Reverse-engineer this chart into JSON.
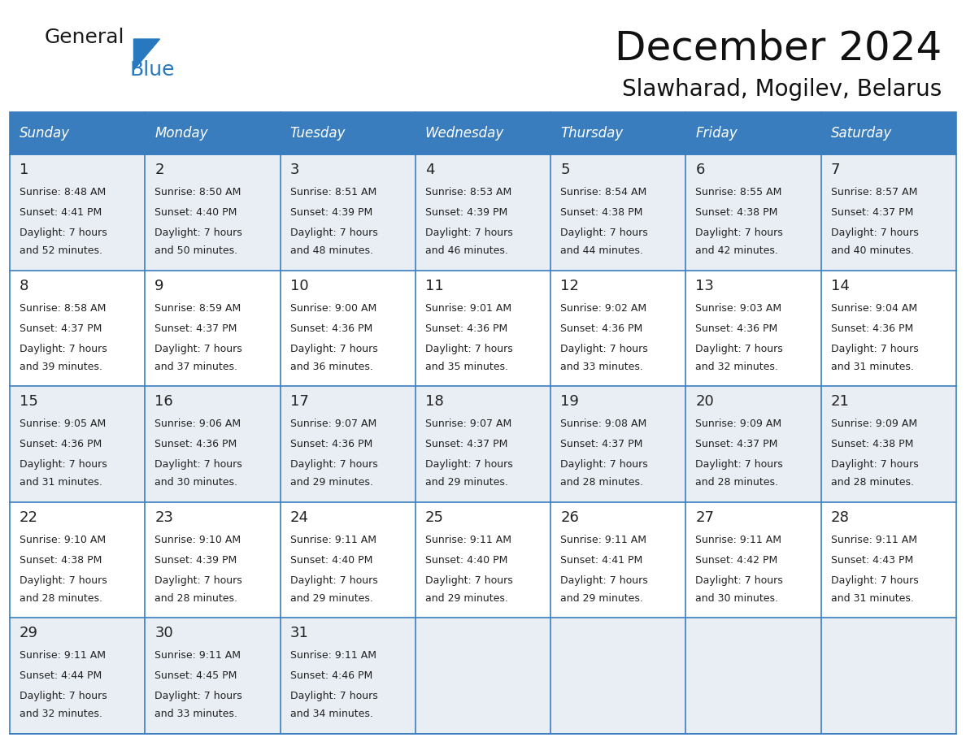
{
  "title": "December 2024",
  "subtitle": "Slawharad, Mogilev, Belarus",
  "header_bg_color": "#3a7dbf",
  "header_text_color": "#ffffff",
  "row_bg_colors": [
    "#e8eef4",
    "#ffffff"
  ],
  "grid_line_color": "#3a7dbf",
  "text_color": "#222222",
  "day_headers": [
    "Sunday",
    "Monday",
    "Tuesday",
    "Wednesday",
    "Thursday",
    "Friday",
    "Saturday"
  ],
  "weeks": [
    [
      {
        "day": "1",
        "sunrise": "8:48 AM",
        "sunset": "4:41 PM",
        "daylight_l1": "Daylight: 7 hours",
        "daylight_l2": "and 52 minutes."
      },
      {
        "day": "2",
        "sunrise": "8:50 AM",
        "sunset": "4:40 PM",
        "daylight_l1": "Daylight: 7 hours",
        "daylight_l2": "and 50 minutes."
      },
      {
        "day": "3",
        "sunrise": "8:51 AM",
        "sunset": "4:39 PM",
        "daylight_l1": "Daylight: 7 hours",
        "daylight_l2": "and 48 minutes."
      },
      {
        "day": "4",
        "sunrise": "8:53 AM",
        "sunset": "4:39 PM",
        "daylight_l1": "Daylight: 7 hours",
        "daylight_l2": "and 46 minutes."
      },
      {
        "day": "5",
        "sunrise": "8:54 AM",
        "sunset": "4:38 PM",
        "daylight_l1": "Daylight: 7 hours",
        "daylight_l2": "and 44 minutes."
      },
      {
        "day": "6",
        "sunrise": "8:55 AM",
        "sunset": "4:38 PM",
        "daylight_l1": "Daylight: 7 hours",
        "daylight_l2": "and 42 minutes."
      },
      {
        "day": "7",
        "sunrise": "8:57 AM",
        "sunset": "4:37 PM",
        "daylight_l1": "Daylight: 7 hours",
        "daylight_l2": "and 40 minutes."
      }
    ],
    [
      {
        "day": "8",
        "sunrise": "8:58 AM",
        "sunset": "4:37 PM",
        "daylight_l1": "Daylight: 7 hours",
        "daylight_l2": "and 39 minutes."
      },
      {
        "day": "9",
        "sunrise": "8:59 AM",
        "sunset": "4:37 PM",
        "daylight_l1": "Daylight: 7 hours",
        "daylight_l2": "and 37 minutes."
      },
      {
        "day": "10",
        "sunrise": "9:00 AM",
        "sunset": "4:36 PM",
        "daylight_l1": "Daylight: 7 hours",
        "daylight_l2": "and 36 minutes."
      },
      {
        "day": "11",
        "sunrise": "9:01 AM",
        "sunset": "4:36 PM",
        "daylight_l1": "Daylight: 7 hours",
        "daylight_l2": "and 35 minutes."
      },
      {
        "day": "12",
        "sunrise": "9:02 AM",
        "sunset": "4:36 PM",
        "daylight_l1": "Daylight: 7 hours",
        "daylight_l2": "and 33 minutes."
      },
      {
        "day": "13",
        "sunrise": "9:03 AM",
        "sunset": "4:36 PM",
        "daylight_l1": "Daylight: 7 hours",
        "daylight_l2": "and 32 minutes."
      },
      {
        "day": "14",
        "sunrise": "9:04 AM",
        "sunset": "4:36 PM",
        "daylight_l1": "Daylight: 7 hours",
        "daylight_l2": "and 31 minutes."
      }
    ],
    [
      {
        "day": "15",
        "sunrise": "9:05 AM",
        "sunset": "4:36 PM",
        "daylight_l1": "Daylight: 7 hours",
        "daylight_l2": "and 31 minutes."
      },
      {
        "day": "16",
        "sunrise": "9:06 AM",
        "sunset": "4:36 PM",
        "daylight_l1": "Daylight: 7 hours",
        "daylight_l2": "and 30 minutes."
      },
      {
        "day": "17",
        "sunrise": "9:07 AM",
        "sunset": "4:36 PM",
        "daylight_l1": "Daylight: 7 hours",
        "daylight_l2": "and 29 minutes."
      },
      {
        "day": "18",
        "sunrise": "9:07 AM",
        "sunset": "4:37 PM",
        "daylight_l1": "Daylight: 7 hours",
        "daylight_l2": "and 29 minutes."
      },
      {
        "day": "19",
        "sunrise": "9:08 AM",
        "sunset": "4:37 PM",
        "daylight_l1": "Daylight: 7 hours",
        "daylight_l2": "and 28 minutes."
      },
      {
        "day": "20",
        "sunrise": "9:09 AM",
        "sunset": "4:37 PM",
        "daylight_l1": "Daylight: 7 hours",
        "daylight_l2": "and 28 minutes."
      },
      {
        "day": "21",
        "sunrise": "9:09 AM",
        "sunset": "4:38 PM",
        "daylight_l1": "Daylight: 7 hours",
        "daylight_l2": "and 28 minutes."
      }
    ],
    [
      {
        "day": "22",
        "sunrise": "9:10 AM",
        "sunset": "4:38 PM",
        "daylight_l1": "Daylight: 7 hours",
        "daylight_l2": "and 28 minutes."
      },
      {
        "day": "23",
        "sunrise": "9:10 AM",
        "sunset": "4:39 PM",
        "daylight_l1": "Daylight: 7 hours",
        "daylight_l2": "and 28 minutes."
      },
      {
        "day": "24",
        "sunrise": "9:11 AM",
        "sunset": "4:40 PM",
        "daylight_l1": "Daylight: 7 hours",
        "daylight_l2": "and 29 minutes."
      },
      {
        "day": "25",
        "sunrise": "9:11 AM",
        "sunset": "4:40 PM",
        "daylight_l1": "Daylight: 7 hours",
        "daylight_l2": "and 29 minutes."
      },
      {
        "day": "26",
        "sunrise": "9:11 AM",
        "sunset": "4:41 PM",
        "daylight_l1": "Daylight: 7 hours",
        "daylight_l2": "and 29 minutes."
      },
      {
        "day": "27",
        "sunrise": "9:11 AM",
        "sunset": "4:42 PM",
        "daylight_l1": "Daylight: 7 hours",
        "daylight_l2": "and 30 minutes."
      },
      {
        "day": "28",
        "sunrise": "9:11 AM",
        "sunset": "4:43 PM",
        "daylight_l1": "Daylight: 7 hours",
        "daylight_l2": "and 31 minutes."
      }
    ],
    [
      {
        "day": "29",
        "sunrise": "9:11 AM",
        "sunset": "4:44 PM",
        "daylight_l1": "Daylight: 7 hours",
        "daylight_l2": "and 32 minutes."
      },
      {
        "day": "30",
        "sunrise": "9:11 AM",
        "sunset": "4:45 PM",
        "daylight_l1": "Daylight: 7 hours",
        "daylight_l2": "and 33 minutes."
      },
      {
        "day": "31",
        "sunrise": "9:11 AM",
        "sunset": "4:46 PM",
        "daylight_l1": "Daylight: 7 hours",
        "daylight_l2": "and 34 minutes."
      },
      null,
      null,
      null,
      null
    ]
  ],
  "logo_general_color": "#1a1a1a",
  "logo_blue_color": "#2878c0",
  "logo_triangle_color": "#2878c0",
  "title_fontsize": 36,
  "subtitle_fontsize": 20,
  "header_fontsize": 12,
  "day_num_fontsize": 12,
  "cell_text_fontsize": 9
}
